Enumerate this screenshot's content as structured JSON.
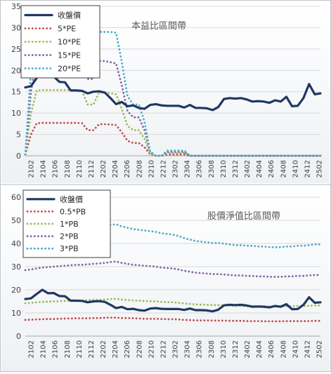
{
  "chart_data": [
    {
      "type": "line",
      "title": "本益比區間帶",
      "ylim": [
        0,
        35
      ],
      "yticks": [
        "0",
        "5",
        "10",
        "15",
        "20",
        "25",
        "30",
        "35"
      ],
      "grid": "horizontal",
      "legend_position": "top-left",
      "x_labels": [
        "2102",
        "2104",
        "2106",
        "2108",
        "2110",
        "2112",
        "2202",
        "2204",
        "2206",
        "2208",
        "2210",
        "2212",
        "2302",
        "2304",
        "2306",
        "2308",
        "2310",
        "2312",
        "2402",
        "2404",
        "2406",
        "2408",
        "2410",
        "2412",
        "2502"
      ],
      "series": [
        {
          "name": "收盤價",
          "style": "solid",
          "color": "#1f3864",
          "values": [
            16.0,
            16.3,
            18.2,
            20.0,
            18.5,
            18.6,
            17.3,
            17.2,
            15.3,
            15.3,
            15.2,
            14.6,
            15.0,
            15.1,
            14.8,
            13.5,
            12.1,
            12.6,
            11.6,
            11.8,
            11.2,
            11.0,
            11.9,
            12.1,
            11.8,
            11.7,
            11.7,
            11.7,
            11.3,
            11.9,
            11.2,
            11.2,
            11.1,
            10.7,
            11.4,
            13.3,
            13.5,
            13.4,
            13.5,
            13.2,
            12.7,
            12.8,
            12.7,
            12.4,
            13.0,
            12.7,
            13.8,
            11.6,
            11.7,
            13.5,
            16.8,
            14.4,
            14.6
          ]
        },
        {
          "name": "5*PE",
          "style": "dotted",
          "color": "#c0504d",
          "values": [
            0.3,
            5.0,
            7.6,
            7.7,
            7.7,
            7.7,
            7.7,
            7.7,
            7.7,
            7.7,
            7.6,
            6.0,
            6.0,
            7.4,
            7.4,
            7.3,
            7.2,
            5.5,
            3.5,
            3.0,
            3.0,
            2.0,
            0.3,
            0,
            0,
            0.3,
            0.3,
            0.3,
            0.3,
            0,
            0,
            0,
            0,
            0,
            0,
            0,
            0,
            0,
            0,
            0,
            0,
            0,
            0,
            0,
            0,
            0,
            0,
            0,
            0,
            0,
            0,
            0,
            0
          ]
        },
        {
          "name": "10*PE",
          "style": "dotted",
          "color": "#9bbb59",
          "values": [
            0.3,
            10.0,
            15.3,
            15.4,
            15.4,
            15.4,
            15.4,
            15.4,
            15.4,
            15.4,
            15.2,
            12.0,
            12.0,
            14.8,
            14.8,
            14.6,
            14.4,
            11.0,
            7.0,
            6.0,
            6.0,
            4.0,
            0.5,
            0,
            0,
            0.6,
            0.6,
            0.6,
            0.6,
            0,
            0,
            0,
            0,
            0,
            0,
            0,
            0,
            0,
            0,
            0,
            0,
            0,
            0,
            0,
            0,
            0,
            0,
            0,
            0,
            0,
            0,
            0,
            0
          ]
        },
        {
          "name": "15*PE",
          "style": "dotted",
          "color": "#8064a2",
          "values": [
            0.3,
            15.0,
            22.9,
            23.1,
            23.1,
            23.1,
            23.1,
            23.1,
            23.1,
            23.1,
            22.8,
            18.0,
            18.0,
            22.2,
            22.2,
            21.9,
            21.6,
            16.5,
            10.5,
            9.0,
            9.0,
            6.0,
            0.8,
            0,
            0,
            0.9,
            0.9,
            0.9,
            0.9,
            0,
            0,
            0,
            0,
            0,
            0,
            0,
            0,
            0,
            0,
            0,
            0,
            0,
            0,
            0,
            0,
            0,
            0,
            0,
            0,
            0,
            0,
            0,
            0
          ]
        },
        {
          "name": "20*PE",
          "style": "dotted",
          "color": "#4bacc6",
          "values": [
            0.3,
            20.0,
            30.5,
            30.8,
            30.8,
            30.8,
            30.8,
            30.8,
            30.8,
            30.8,
            30.4,
            24.0,
            24.0,
            29.0,
            29.0,
            29.0,
            28.8,
            22.0,
            14.0,
            12.0,
            12.0,
            8.0,
            1.0,
            0,
            0,
            1.2,
            1.2,
            1.2,
            1.2,
            0,
            0,
            0,
            0,
            0,
            0,
            0,
            0,
            0,
            0,
            0,
            0,
            0,
            0,
            0,
            0,
            0,
            0,
            0,
            0,
            0,
            0,
            0,
            0
          ]
        }
      ]
    },
    {
      "type": "line",
      "title": "股價淨值比區間帶",
      "ylim": [
        0,
        60
      ],
      "yticks": [
        "0",
        "10",
        "20",
        "30",
        "40",
        "50",
        "60"
      ],
      "grid": "horizontal",
      "legend_position": "top-left",
      "x_labels": [
        "2102",
        "2104",
        "2106",
        "2108",
        "2110",
        "2112",
        "2202",
        "2204",
        "2206",
        "2208",
        "2210",
        "2212",
        "2302",
        "2304",
        "2306",
        "2308",
        "2310",
        "2312",
        "2402",
        "2404",
        "2406",
        "2408",
        "2410",
        "2412",
        "2502"
      ],
      "series": [
        {
          "name": "收盤價",
          "style": "solid",
          "color": "#1f3864",
          "values": [
            16.0,
            16.3,
            18.2,
            20.0,
            18.5,
            18.6,
            17.3,
            17.2,
            15.3,
            15.3,
            15.2,
            14.6,
            15.0,
            15.1,
            14.8,
            13.5,
            12.1,
            12.6,
            11.6,
            11.8,
            11.2,
            11.0,
            11.9,
            12.1,
            11.8,
            11.7,
            11.7,
            11.7,
            11.3,
            11.9,
            11.2,
            11.2,
            11.1,
            10.7,
            11.4,
            13.3,
            13.5,
            13.4,
            13.5,
            13.2,
            12.7,
            12.8,
            12.7,
            12.4,
            13.0,
            12.7,
            13.8,
            11.6,
            11.7,
            13.5,
            16.8,
            14.4,
            14.6
          ]
        },
        {
          "name": "0.5*PB",
          "style": "dotted",
          "color": "#c0504d",
          "values": [
            7.0,
            7.1,
            7.2,
            7.3,
            7.4,
            7.4,
            7.5,
            7.6,
            7.6,
            7.7,
            7.7,
            7.7,
            7.8,
            7.8,
            7.9,
            8.0,
            8.0,
            7.8,
            7.8,
            7.7,
            7.6,
            7.5,
            7.5,
            7.5,
            7.4,
            7.3,
            7.3,
            7.2,
            7.0,
            6.9,
            6.8,
            6.8,
            6.8,
            6.7,
            6.7,
            6.7,
            6.6,
            6.6,
            6.6,
            6.5,
            6.5,
            6.5,
            6.4,
            6.4,
            6.4,
            6.4,
            6.5,
            6.5,
            6.5,
            6.5,
            6.5,
            6.6,
            6.6
          ]
        },
        {
          "name": "1*PB",
          "style": "dotted",
          "color": "#9bbb59",
          "values": [
            14.2,
            14.4,
            14.6,
            14.8,
            14.9,
            15.0,
            15.1,
            15.2,
            15.3,
            15.4,
            15.4,
            15.5,
            15.6,
            15.7,
            15.8,
            16.0,
            16.1,
            15.8,
            15.6,
            15.4,
            15.3,
            15.2,
            15.1,
            15.0,
            14.8,
            14.7,
            14.6,
            14.4,
            14.1,
            13.9,
            13.7,
            13.6,
            13.5,
            13.4,
            13.4,
            13.3,
            13.2,
            13.1,
            13.1,
            13.0,
            13.0,
            12.9,
            12.9,
            12.8,
            12.8,
            12.8,
            12.9,
            12.9,
            13.0,
            13.0,
            13.1,
            13.2,
            13.2
          ]
        },
        {
          "name": "2*PB",
          "style": "dotted",
          "color": "#8064a2",
          "values": [
            28.5,
            28.8,
            29.2,
            29.6,
            29.8,
            30.0,
            30.2,
            30.4,
            30.6,
            30.8,
            30.8,
            31.0,
            31.2,
            31.4,
            31.6,
            32.0,
            32.2,
            31.6,
            31.2,
            30.8,
            30.6,
            30.4,
            30.2,
            30.0,
            29.6,
            29.4,
            29.2,
            28.8,
            28.2,
            27.8,
            27.4,
            27.2,
            27.0,
            26.8,
            26.8,
            26.6,
            26.4,
            26.2,
            26.2,
            26.0,
            26.0,
            25.8,
            25.8,
            25.6,
            25.6,
            25.6,
            25.8,
            25.8,
            26.0,
            26.0,
            26.2,
            26.4,
            26.4
          ]
        },
        {
          "name": "3*PB",
          "style": "dotted",
          "color": "#4bacc6",
          "values": [
            42.8,
            43.2,
            43.8,
            44.4,
            44.7,
            45.0,
            45.3,
            45.6,
            45.9,
            46.2,
            46.2,
            46.5,
            46.8,
            47.1,
            47.4,
            48.0,
            48.3,
            47.4,
            46.8,
            46.2,
            45.9,
            45.6,
            45.3,
            45.0,
            44.4,
            44.1,
            43.8,
            43.2,
            42.3,
            41.7,
            41.1,
            40.8,
            40.5,
            40.2,
            40.2,
            39.9,
            39.6,
            39.3,
            39.3,
            39.0,
            39.0,
            38.7,
            38.7,
            38.4,
            38.4,
            38.4,
            38.7,
            38.7,
            39.0,
            39.0,
            39.3,
            39.6,
            39.6
          ]
        }
      ]
    }
  ]
}
